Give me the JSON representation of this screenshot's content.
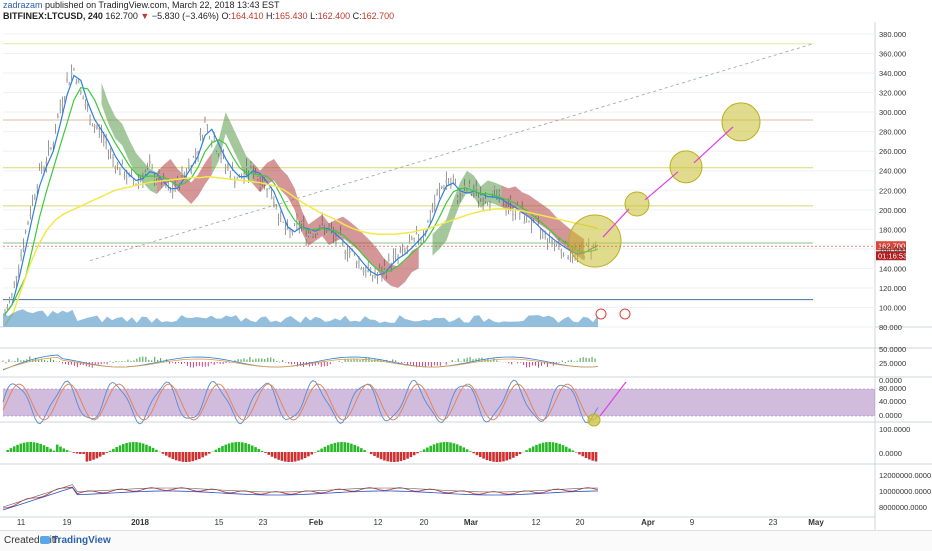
{
  "header": {
    "author": "zadrazam",
    "published": "published on TradingView.com, March 22, 2018 13:43 EST",
    "symbol": "BITFINEX:LTCUSD, 240",
    "price": "162.700",
    "arrow": "▼",
    "change": "−5.830 (−3.46%)",
    "o_label": "O:",
    "o": "164.410",
    "h_label": "H:",
    "h": "165.430",
    "l_label": "L:",
    "l": "162.400",
    "c_label": "C:",
    "c": "162.700"
  },
  "footer": {
    "created": "Created with",
    "brand": "TradingView"
  },
  "chart_data": {
    "type": "line",
    "main_yaxis": {
      "ticks": [
        "380.000",
        "360.000",
        "340.000",
        "320.000",
        "300.000",
        "280.000",
        "260.000",
        "240.000",
        "220.000",
        "200.000",
        "180.000",
        "160.000",
        "140.000",
        "120.000",
        "100.000",
        "80.000"
      ],
      "ylim": [
        80,
        380
      ]
    },
    "price_label": "162.700",
    "countdown_label": "01:16:53",
    "macd_axis": [
      "50.0000",
      "25.0000",
      "0.0000"
    ],
    "stoch_axis": [
      "80.0000",
      "40.0000",
      "0.0000"
    ],
    "osc_axis": [
      "100.0000",
      "0.0000"
    ],
    "vol_axis": [
      "12000000.0000",
      "10000000.0000",
      "8000000.0000"
    ],
    "x_labels": [
      "11",
      "19",
      "2018",
      "15",
      "23",
      "Feb",
      "12",
      "20",
      "Mar",
      "12",
      "20",
      "Apr",
      "9",
      "23",
      "May"
    ],
    "x_bold": [
      "2018",
      "Feb",
      "Mar",
      "Apr",
      "May"
    ],
    "horizontal_levels": [
      {
        "value": 370,
        "color": "#e8e89a"
      },
      {
        "value": 292,
        "color": "#e5b8a0"
      },
      {
        "value": 243,
        "color": "#d8d870"
      },
      {
        "value": 204,
        "color": "#d8d870"
      },
      {
        "value": 166,
        "color": "#8fbf8f"
      },
      {
        "value": 108,
        "color": "#4a6fa0"
      }
    ],
    "price_series": [
      93,
      112,
      145,
      176,
      210,
      238,
      250,
      270,
      305,
      330,
      345,
      320,
      300,
      285,
      278,
      262,
      248,
      240,
      232,
      228,
      236,
      242,
      232,
      225,
      218,
      226,
      238,
      248,
      262,
      290,
      275,
      260,
      245,
      238,
      230,
      238,
      242,
      232,
      225,
      212,
      190,
      175,
      180,
      185,
      176,
      180,
      183,
      178,
      172,
      165,
      158,
      150,
      140,
      134,
      132,
      138,
      148,
      152,
      157,
      165,
      172,
      180,
      200,
      218,
      230,
      225,
      214,
      220,
      218,
      215,
      212,
      214,
      208,
      205,
      200,
      195,
      190,
      182,
      176,
      170,
      165,
      160,
      156,
      154,
      158,
      162,
      165
    ],
    "yellow_ma": [
      82,
      95,
      120,
      145,
      165,
      180,
      190,
      196,
      200,
      204,
      208,
      212,
      216,
      220,
      222,
      224,
      226,
      228,
      229,
      230,
      231,
      232,
      233,
      233,
      234,
      233,
      232,
      231,
      230,
      229,
      228,
      226,
      224,
      220,
      214,
      208,
      203,
      198,
      194,
      190,
      185,
      181,
      178,
      176,
      175,
      175,
      175,
      176,
      177,
      179,
      181,
      184,
      187,
      190,
      193,
      196,
      198,
      200,
      201,
      201,
      200,
      199,
      197,
      195,
      193,
      191,
      189,
      187,
      185,
      183,
      181
    ],
    "targets": [
      {
        "date_idx": 0,
        "price": 168,
        "r": 26
      },
      {
        "date_idx": 1,
        "price": 206,
        "r": 12
      },
      {
        "date_idx": 2,
        "price": 244,
        "r": 16
      },
      {
        "date_idx": 3,
        "price": 290,
        "r": 19
      }
    ]
  }
}
